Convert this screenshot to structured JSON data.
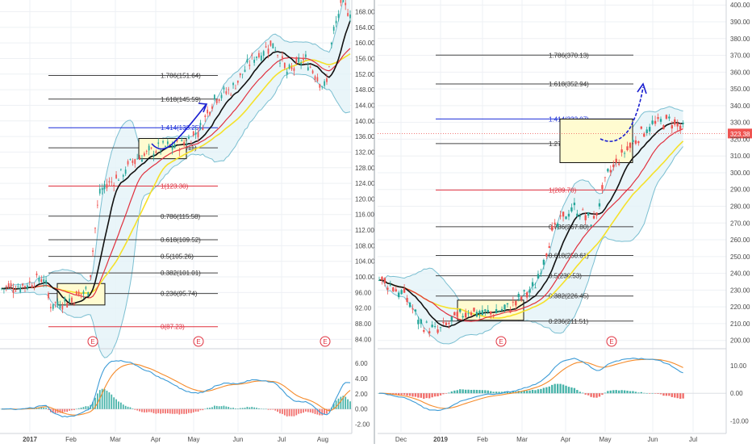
{
  "colors": {
    "background": "#ffffff",
    "grid": "#eef0f4",
    "axis_text": "#4a4a4a",
    "candle_up": "#26a69a",
    "candle_down": "#ef5350",
    "ma_fast": "#111111",
    "ma_mid": "#e0313f",
    "ma_slow": "#f5e12a",
    "bollinger": "#7bbfd1",
    "bollinger_fill": "#e4f3f7",
    "fib_line": "#444444",
    "fib_blue": "#1b2fd9",
    "fib_red": "#e0313f",
    "box_fill": "#fffbd0",
    "arrow": "#1a1fd0",
    "macd_line": "#3c9bd6",
    "signal_line": "#f58b2b",
    "hist_up": "#26a69a",
    "hist_down": "#ef5350",
    "earnings": "#e0313f",
    "price_tag": "#ef5350"
  },
  "chart_data": [
    {
      "type": "candlestick",
      "panel": "left",
      "x_ticks": [
        "2017",
        "Feb",
        "Mar",
        "Apr",
        "May",
        "Jun",
        "Jul",
        "Aug"
      ],
      "y_ticks": [
        "84.00",
        "88.00",
        "92.00",
        "96.00",
        "100.00",
        "104.00",
        "108.00",
        "112.00",
        "116.00",
        "120.00",
        "124.00",
        "128.00",
        "132.00",
        "136.00",
        "140.00",
        "144.00",
        "148.00",
        "152.00",
        "156.00",
        "160.00",
        "164.00",
        "168.00"
      ],
      "ylim": [
        82,
        171
      ],
      "price_path": [
        {
          "x": 0,
          "y": 97
        },
        {
          "x": 0.07,
          "y": 98
        },
        {
          "x": 0.12,
          "y": 100
        },
        {
          "x": 0.14,
          "y": 93
        },
        {
          "x": 0.2,
          "y": 94
        },
        {
          "x": 0.25,
          "y": 97
        },
        {
          "x": 0.28,
          "y": 122
        },
        {
          "x": 0.34,
          "y": 126
        },
        {
          "x": 0.38,
          "y": 130
        },
        {
          "x": 0.45,
          "y": 133
        },
        {
          "x": 0.52,
          "y": 134
        },
        {
          "x": 0.57,
          "y": 138
        },
        {
          "x": 0.61,
          "y": 146
        },
        {
          "x": 0.66,
          "y": 148
        },
        {
          "x": 0.72,
          "y": 156
        },
        {
          "x": 0.78,
          "y": 160
        },
        {
          "x": 0.82,
          "y": 152
        },
        {
          "x": 0.87,
          "y": 156
        },
        {
          "x": 0.9,
          "y": 152
        },
        {
          "x": 0.93,
          "y": 148
        },
        {
          "x": 0.95,
          "y": 162
        },
        {
          "x": 0.975,
          "y": 170
        },
        {
          "x": 1.0,
          "y": 168
        }
      ],
      "fib_levels": [
        {
          "label": "1.786(151.64)",
          "value": 151.64,
          "color": "fib_line"
        },
        {
          "label": "1.618(145.59)",
          "value": 145.59,
          "color": "fib_line"
        },
        {
          "label": "1.414(138.25)",
          "value": 138.25,
          "color": "fib_blue"
        },
        {
          "label": "1.27(133.11)",
          "value": 133.11,
          "color": "fib_line"
        },
        {
          "label": "1(123.30)",
          "value": 123.3,
          "color": "fib_red"
        },
        {
          "label": "0.786(115.58)",
          "value": 115.58,
          "color": "fib_line"
        },
        {
          "label": "0.618(109.52)",
          "value": 109.52,
          "color": "fib_line"
        },
        {
          "label": "0.5(105.26)",
          "value": 105.26,
          "color": "fib_line"
        },
        {
          "label": "0.382(101.01)",
          "value": 101.01,
          "color": "fib_line"
        },
        {
          "label": "0.236(95.74)",
          "value": 95.74,
          "color": "fib_line"
        },
        {
          "label": "0(87.23)",
          "value": 87.23,
          "color": "fib_red"
        }
      ],
      "earnings_markers": [
        "E",
        "E",
        "E"
      ],
      "macd_y_ticks": [
        "6.00",
        "4.00",
        "2.00",
        "0.00",
        "-2.00"
      ],
      "macd_ylim": [
        -3,
        7.5
      ]
    },
    {
      "type": "candlestick",
      "panel": "right",
      "x_ticks": [
        "Dec",
        "2019",
        "Feb",
        "Mar",
        "Apr",
        "May",
        "Jun",
        "Jul"
      ],
      "y_ticks": [
        "200.00",
        "210.00",
        "220.00",
        "230.00",
        "240.00",
        "250.00",
        "260.00",
        "270.00",
        "280.00",
        "290.00",
        "300.00",
        "310.00",
        "320.00",
        "330.00",
        "340.00",
        "350.00",
        "360.00",
        "370.00",
        "380.00",
        "390.00",
        "400.00"
      ],
      "ylim": [
        196,
        403
      ],
      "last_price": "323.38",
      "price_path": [
        {
          "x": 0,
          "y": 236
        },
        {
          "x": 0.04,
          "y": 232
        },
        {
          "x": 0.08,
          "y": 225
        },
        {
          "x": 0.12,
          "y": 210
        },
        {
          "x": 0.17,
          "y": 205
        },
        {
          "x": 0.2,
          "y": 210
        },
        {
          "x": 0.26,
          "y": 218
        },
        {
          "x": 0.32,
          "y": 216
        },
        {
          "x": 0.38,
          "y": 220
        },
        {
          "x": 0.45,
          "y": 232
        },
        {
          "x": 0.5,
          "y": 264
        },
        {
          "x": 0.56,
          "y": 280
        },
        {
          "x": 0.62,
          "y": 270
        },
        {
          "x": 0.66,
          "y": 298
        },
        {
          "x": 0.72,
          "y": 315
        },
        {
          "x": 0.78,
          "y": 328
        },
        {
          "x": 0.84,
          "y": 331
        },
        {
          "x": 0.88,
          "y": 326
        }
      ],
      "fib_levels": [
        {
          "label": "1.786(370.13)",
          "value": 370.13,
          "color": "fib_line"
        },
        {
          "label": "1.618(352.94)",
          "value": 352.94,
          "color": "fib_line"
        },
        {
          "label": "1.414(332.07)",
          "value": 332.07,
          "color": "fib_blue"
        },
        {
          "label": "1.27(317.35)",
          "value": 317.35,
          "color": "fib_line"
        },
        {
          "label": "1(289.70)",
          "value": 289.7,
          "color": "fib_red"
        },
        {
          "label": "0.786(267.80)",
          "value": 267.8,
          "color": "fib_line"
        },
        {
          "label": "0.618(250.61)",
          "value": 250.61,
          "color": "fib_line"
        },
        {
          "label": "0.5(238.53)",
          "value": 238.53,
          "color": "fib_line"
        },
        {
          "label": "0.382(226.45)",
          "value": 226.45,
          "color": "fib_line"
        },
        {
          "label": "0.236(211.51)",
          "value": 211.51,
          "color": "fib_line"
        }
      ],
      "earnings_markers": [
        "E",
        "E"
      ],
      "macd_y_ticks": [
        "10.00",
        "0.00",
        "-10.00"
      ],
      "macd_ylim": [
        -14,
        15
      ]
    }
  ]
}
